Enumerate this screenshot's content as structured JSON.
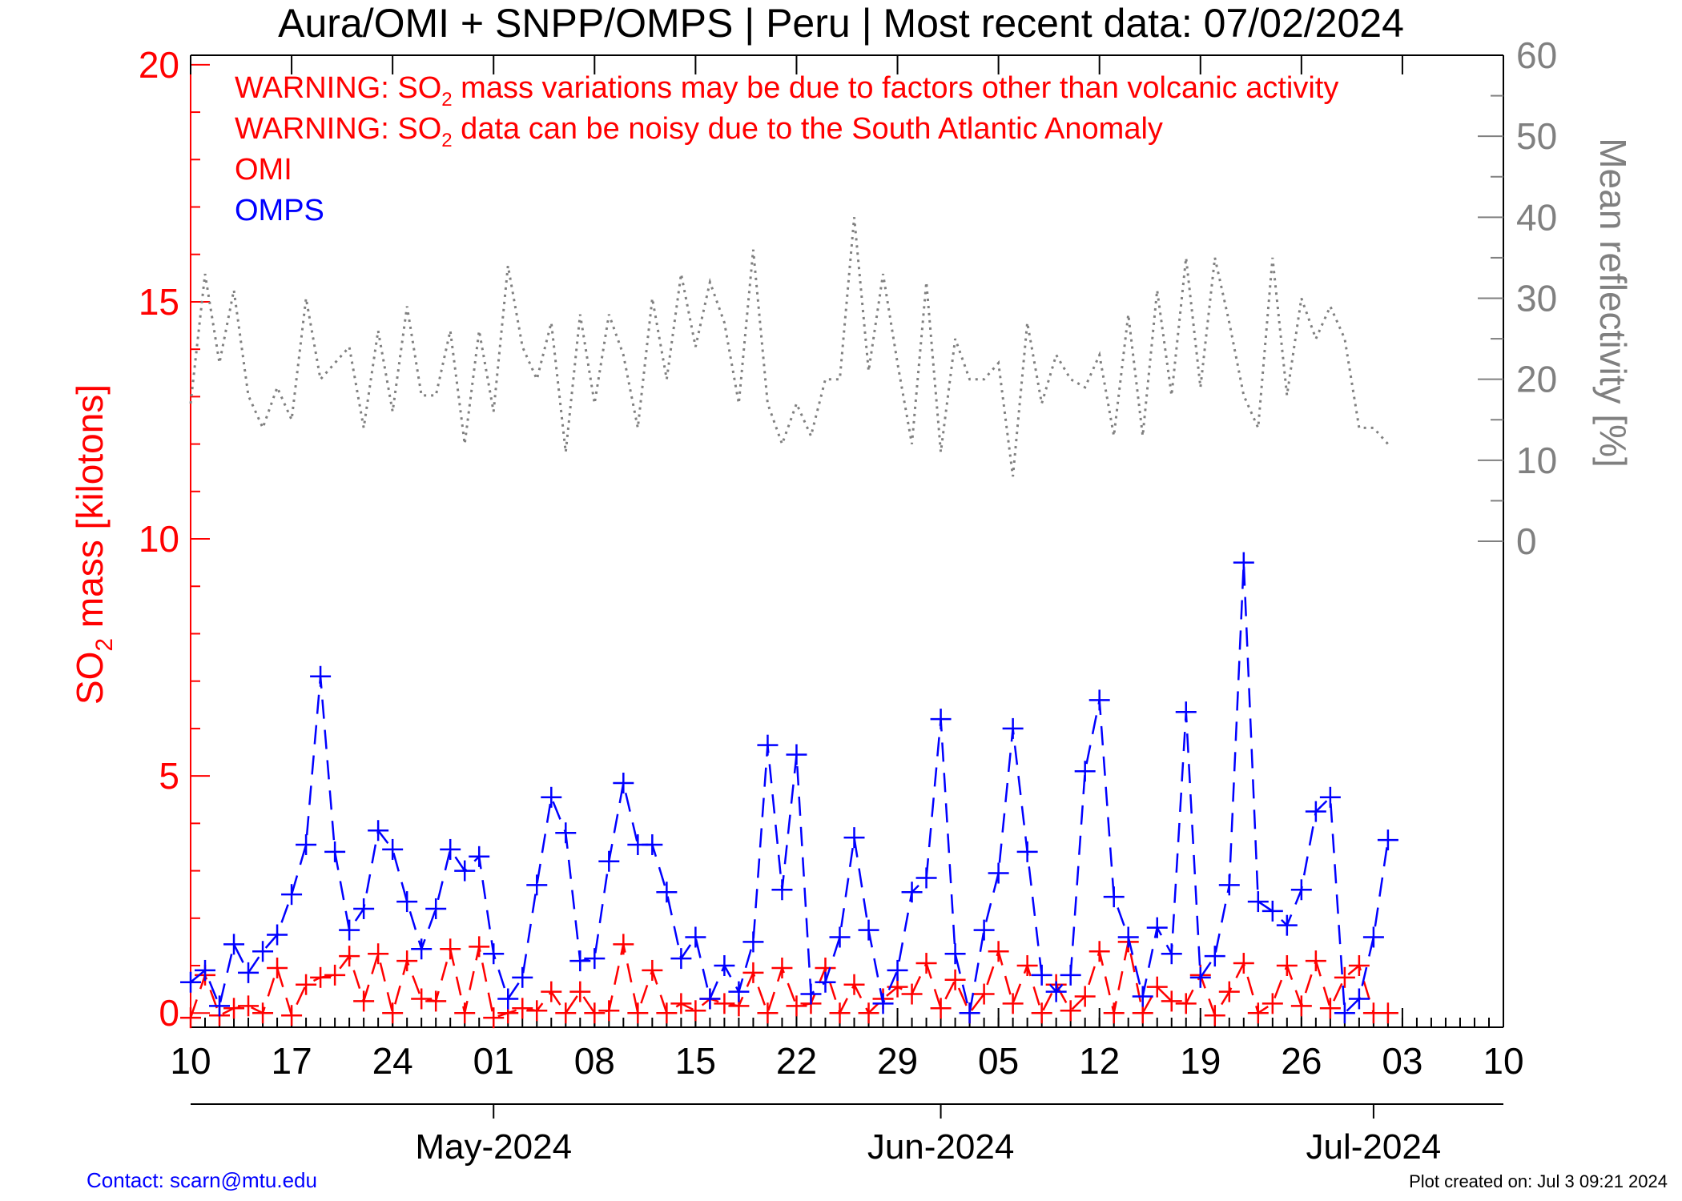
{
  "title": "Aura/OMI + SNPP/OMPS | Peru | Most recent data: 07/02/2024",
  "warnings": [
    {
      "prefix": "WARNING: SO",
      "sub": "2",
      "rest": " mass variations may be due to factors other than volcanic activity"
    },
    {
      "prefix": "WARNING: SO",
      "sub": "2",
      "rest": " data can be noisy due to the South Atlantic Anomaly"
    }
  ],
  "legend": [
    {
      "label": "OMI",
      "color": "#ff0000"
    },
    {
      "label": "OMPS",
      "color": "#0000ff"
    }
  ],
  "contact": "Contact: scarn@mtu.edu",
  "created": "Plot created on: Jul  3 09:21 2024",
  "colors": {
    "omi": "#ff0000",
    "omps": "#0000ff",
    "reflectivity": "#808080",
    "axis": "#000000"
  },
  "chart_data": {
    "type": "line",
    "y_left": {
      "label_prefix": "SO",
      "label_sub": "2",
      "label_rest": " mass [kilotons]",
      "ylim": [
        -0.3,
        20.2
      ],
      "ticks": [
        0,
        5,
        10,
        15,
        20
      ]
    },
    "y_right": {
      "label": "Mean reflectivity [%]",
      "ylim": [
        -60,
        60
      ],
      "ticks": [
        0,
        10,
        20,
        30,
        40,
        50,
        60
      ]
    },
    "x_axis": {
      "start": "2024-04-10",
      "end": "2024-07-10",
      "ticks": [
        {
          "date": "2024-04-10",
          "label": "10"
        },
        {
          "date": "2024-04-17",
          "label": "17"
        },
        {
          "date": "2024-04-24",
          "label": "24"
        },
        {
          "date": "2024-05-01",
          "label": "01"
        },
        {
          "date": "2024-05-08",
          "label": "08"
        },
        {
          "date": "2024-05-15",
          "label": "15"
        },
        {
          "date": "2024-05-22",
          "label": "22"
        },
        {
          "date": "2024-05-29",
          "label": "29"
        },
        {
          "date": "2024-06-05",
          "label": "05"
        },
        {
          "date": "2024-06-12",
          "label": "12"
        },
        {
          "date": "2024-06-19",
          "label": "19"
        },
        {
          "date": "2024-06-26",
          "label": "26"
        },
        {
          "date": "2024-07-03",
          "label": "03"
        },
        {
          "date": "2024-07-10",
          "label": "10"
        }
      ],
      "months": [
        {
          "date": "2024-05-01",
          "label": "May-2024"
        },
        {
          "date": "2024-06-01",
          "label": "Jun-2024"
        },
        {
          "date": "2024-07-01",
          "label": "Jul-2024"
        }
      ]
    },
    "series": [
      {
        "name": "OMI",
        "color": "#ff0000",
        "style": "dashed-plus",
        "x": [
          "2024-04-10",
          "2024-04-11",
          "2024-04-12",
          "2024-04-13",
          "2024-04-14",
          "2024-04-15",
          "2024-04-16",
          "2024-04-17",
          "2024-04-18",
          "2024-04-19",
          "2024-04-20",
          "2024-04-21",
          "2024-04-22",
          "2024-04-23",
          "2024-04-24",
          "2024-04-25",
          "2024-04-26",
          "2024-04-27",
          "2024-04-28",
          "2024-04-29",
          "2024-04-30",
          "2024-05-01",
          "2024-05-02",
          "2024-05-03",
          "2024-05-04",
          "2024-05-05",
          "2024-05-06",
          "2024-05-07",
          "2024-05-08",
          "2024-05-09",
          "2024-05-10",
          "2024-05-11",
          "2024-05-12",
          "2024-05-13",
          "2024-05-14",
          "2024-05-15",
          "2024-05-16",
          "2024-05-17",
          "2024-05-18",
          "2024-05-19",
          "2024-05-20",
          "2024-05-21",
          "2024-05-22",
          "2024-05-23",
          "2024-05-24",
          "2024-05-25",
          "2024-05-26",
          "2024-05-27",
          "2024-05-28",
          "2024-05-29",
          "2024-05-30",
          "2024-05-31",
          "2024-06-01",
          "2024-06-02",
          "2024-06-03",
          "2024-06-04",
          "2024-06-05",
          "2024-06-06",
          "2024-06-07",
          "2024-06-08",
          "2024-06-09",
          "2024-06-10",
          "2024-06-11",
          "2024-06-12",
          "2024-06-13",
          "2024-06-14",
          "2024-06-15",
          "2024-06-16",
          "2024-06-17",
          "2024-06-18",
          "2024-06-19",
          "2024-06-20",
          "2024-06-21",
          "2024-06-22",
          "2024-06-23",
          "2024-06-24",
          "2024-06-25",
          "2024-06-26",
          "2024-06-27",
          "2024-06-28",
          "2024-06-29",
          "2024-06-30",
          "2024-07-01",
          "2024-07-02"
        ],
        "values": [
          -0.1,
          0.8,
          -0.05,
          0.1,
          0.15,
          0.0,
          0.95,
          -0.05,
          0.6,
          0.75,
          0.8,
          1.2,
          0.25,
          1.25,
          0.0,
          1.1,
          0.3,
          0.25,
          1.35,
          0.0,
          1.4,
          -0.1,
          0.0,
          0.1,
          0.05,
          0.45,
          0.0,
          0.45,
          0.0,
          0.05,
          1.45,
          0.0,
          0.9,
          0.0,
          0.2,
          0.05,
          0.3,
          0.2,
          0.15,
          0.85,
          0.0,
          0.95,
          0.15,
          0.2,
          0.95,
          0.0,
          0.6,
          0.0,
          0.3,
          0.55,
          0.4,
          1.05,
          0.1,
          0.7,
          0.0,
          0.4,
          1.3,
          0.2,
          1.0,
          0.0,
          0.6,
          0.05,
          0.35,
          1.3,
          0.0,
          1.5,
          0.0,
          0.55,
          0.25,
          0.2,
          0.8,
          -0.05,
          0.45,
          1.05,
          0.0,
          0.2,
          1.0,
          0.15,
          1.1,
          0.1,
          0.75,
          1.0,
          0.0,
          0.0
        ]
      },
      {
        "name": "OMPS",
        "color": "#0000ff",
        "style": "dashed-plus",
        "x": [
          "2024-04-10",
          "2024-04-11",
          "2024-04-12",
          "2024-04-13",
          "2024-04-14",
          "2024-04-15",
          "2024-04-16",
          "2024-04-17",
          "2024-04-18",
          "2024-04-19",
          "2024-04-20",
          "2024-04-21",
          "2024-04-22",
          "2024-04-23",
          "2024-04-24",
          "2024-04-25",
          "2024-04-26",
          "2024-04-27",
          "2024-04-28",
          "2024-04-29",
          "2024-04-30",
          "2024-05-01",
          "2024-05-02",
          "2024-05-03",
          "2024-05-04",
          "2024-05-05",
          "2024-05-06",
          "2024-05-07",
          "2024-05-08",
          "2024-05-09",
          "2024-05-10",
          "2024-05-11",
          "2024-05-12",
          "2024-05-13",
          "2024-05-14",
          "2024-05-15",
          "2024-05-16",
          "2024-05-17",
          "2024-05-18",
          "2024-05-19",
          "2024-05-20",
          "2024-05-21",
          "2024-05-22",
          "2024-05-23",
          "2024-05-24",
          "2024-05-25",
          "2024-05-26",
          "2024-05-27",
          "2024-05-28",
          "2024-05-29",
          "2024-05-30",
          "2024-05-31",
          "2024-06-01",
          "2024-06-02",
          "2024-06-03",
          "2024-06-04",
          "2024-06-05",
          "2024-06-06",
          "2024-06-07",
          "2024-06-08",
          "2024-06-09",
          "2024-06-10",
          "2024-06-11",
          "2024-06-12",
          "2024-06-13",
          "2024-06-14",
          "2024-06-15",
          "2024-06-16",
          "2024-06-17",
          "2024-06-18",
          "2024-06-19",
          "2024-06-20",
          "2024-06-21",
          "2024-06-22",
          "2024-06-23",
          "2024-06-24",
          "2024-06-25",
          "2024-06-26",
          "2024-06-27",
          "2024-06-28",
          "2024-06-29",
          "2024-06-30",
          "2024-07-01",
          "2024-07-02"
        ],
        "values": [
          0.65,
          0.9,
          0.15,
          1.45,
          0.85,
          1.3,
          1.65,
          2.5,
          3.55,
          7.1,
          3.4,
          1.75,
          2.2,
          3.85,
          3.45,
          2.35,
          1.35,
          2.2,
          3.45,
          3.0,
          3.3,
          1.25,
          0.3,
          0.75,
          2.7,
          4.55,
          3.8,
          1.1,
          1.15,
          3.2,
          4.85,
          3.55,
          3.55,
          2.55,
          1.15,
          1.6,
          0.3,
          1.0,
          0.45,
          1.5,
          5.65,
          2.6,
          5.45,
          0.4,
          0.65,
          1.6,
          3.7,
          1.75,
          0.2,
          0.9,
          2.55,
          2.85,
          6.2,
          1.25,
          0.0,
          1.75,
          2.95,
          6.0,
          3.4,
          0.8,
          0.45,
          0.8,
          5.1,
          6.6,
          2.45,
          1.6,
          0.35,
          1.8,
          1.25,
          6.35,
          0.75,
          1.2,
          2.7,
          9.5,
          2.35,
          2.15,
          1.85,
          2.6,
          4.25,
          4.55,
          0.0,
          0.3,
          1.6,
          3.65
        ]
      },
      {
        "name": "Mean reflectivity",
        "color": "#808080",
        "style": "dotted",
        "axis": "right",
        "x": [
          "2024-04-10",
          "2024-04-11",
          "2024-04-12",
          "2024-04-13",
          "2024-04-14",
          "2024-04-15",
          "2024-04-16",
          "2024-04-17",
          "2024-04-18",
          "2024-04-19",
          "2024-04-20",
          "2024-04-21",
          "2024-04-22",
          "2024-04-23",
          "2024-04-24",
          "2024-04-25",
          "2024-04-26",
          "2024-04-27",
          "2024-04-28",
          "2024-04-29",
          "2024-04-30",
          "2024-05-01",
          "2024-05-02",
          "2024-05-03",
          "2024-05-04",
          "2024-05-05",
          "2024-05-06",
          "2024-05-07",
          "2024-05-08",
          "2024-05-09",
          "2024-05-10",
          "2024-05-11",
          "2024-05-12",
          "2024-05-13",
          "2024-05-14",
          "2024-05-15",
          "2024-05-16",
          "2024-05-17",
          "2024-05-18",
          "2024-05-19",
          "2024-05-20",
          "2024-05-21",
          "2024-05-22",
          "2024-05-23",
          "2024-05-24",
          "2024-05-25",
          "2024-05-26",
          "2024-05-27",
          "2024-05-28",
          "2024-05-29",
          "2024-05-30",
          "2024-05-31",
          "2024-06-01",
          "2024-06-02",
          "2024-06-03",
          "2024-06-04",
          "2024-06-05",
          "2024-06-06",
          "2024-06-07",
          "2024-06-08",
          "2024-06-09",
          "2024-06-10",
          "2024-06-11",
          "2024-06-12",
          "2024-06-13",
          "2024-06-14",
          "2024-06-15",
          "2024-06-16",
          "2024-06-17",
          "2024-06-18",
          "2024-06-19",
          "2024-06-20",
          "2024-06-21",
          "2024-06-22",
          "2024-06-23",
          "2024-06-24",
          "2024-06-25",
          "2024-06-26",
          "2024-06-27",
          "2024-06-28",
          "2024-06-29",
          "2024-06-30",
          "2024-07-01",
          "2024-07-02"
        ],
        "values": [
          17,
          33,
          22,
          31,
          18,
          14,
          19,
          15,
          30,
          20,
          22,
          24,
          14,
          26,
          16,
          29,
          18,
          18,
          26,
          12,
          26,
          16,
          34,
          24,
          20,
          27,
          11,
          28,
          17,
          28,
          23,
          14,
          30,
          20,
          33,
          24,
          32,
          27,
          17,
          36,
          17,
          12,
          17,
          13,
          20,
          20,
          40,
          21,
          33,
          22,
          12,
          32,
          11,
          25,
          20,
          20,
          22,
          8,
          27,
          17,
          23,
          20,
          19,
          23,
          13,
          28,
          13,
          31,
          18,
          35,
          19,
          35,
          27,
          18,
          14,
          35,
          18,
          30,
          25,
          29,
          25,
          14,
          14,
          12
        ]
      }
    ]
  }
}
